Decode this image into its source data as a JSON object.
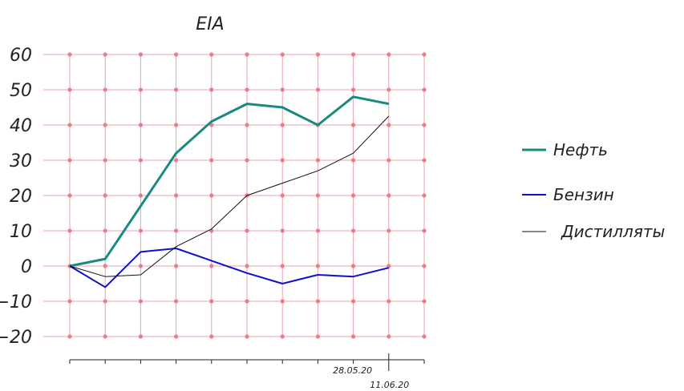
{
  "chart_data": {
    "type": "line",
    "title": "EIA",
    "xlabel": "",
    "ylabel": "",
    "ylim": [
      -20,
      60
    ],
    "y_ticks": [
      60,
      50,
      40,
      30,
      20,
      10,
      0,
      -10,
      -20
    ],
    "y_tick_labels": [
      "60",
      "50",
      "40",
      "30",
      "20",
      "10",
      "0",
      "−10",
      "−20"
    ],
    "x": [
      0,
      1,
      2,
      3,
      4,
      5,
      6,
      7,
      8,
      9
    ],
    "x_tick_labels": [
      "",
      "",
      "",
      "",
      "",
      "",
      "",
      "",
      "28.05.20",
      "11.06.20"
    ],
    "grid": true,
    "legend_position": "right",
    "series": [
      {
        "name": "Нефть",
        "color": "#1a8a80",
        "values": [
          0,
          2,
          17,
          32,
          41,
          46,
          45,
          40,
          48,
          46
        ]
      },
      {
        "name": "Бензин",
        "color": "#1010cc",
        "values": [
          0,
          -6,
          4,
          5,
          1.5,
          -2,
          -5,
          -2.5,
          -3,
          -0.5
        ]
      },
      {
        "name": "Дистилляты",
        "color": "#111111",
        "values": [
          0,
          -3,
          -2.5,
          5.5,
          10.5,
          20,
          23.5,
          27,
          32,
          42.5
        ]
      }
    ]
  }
}
